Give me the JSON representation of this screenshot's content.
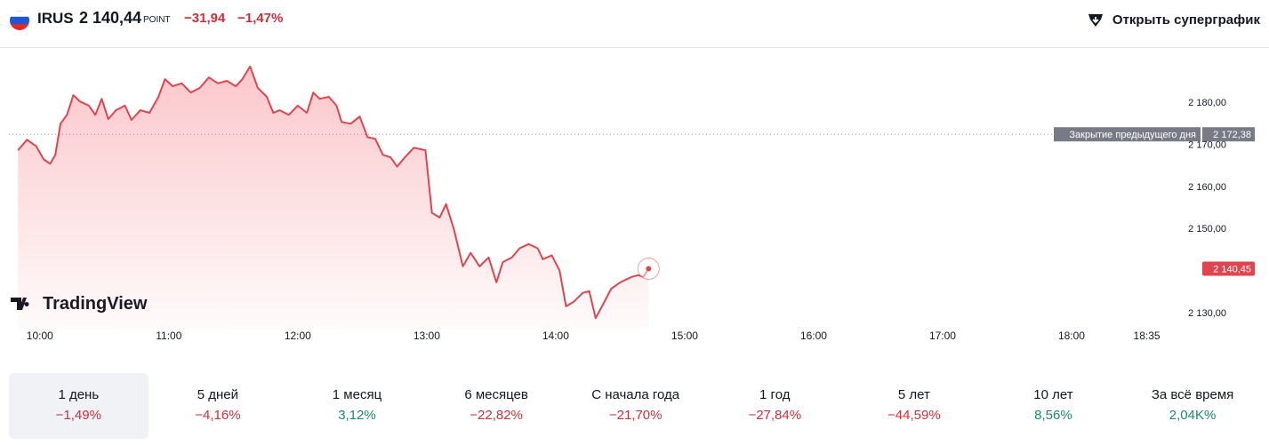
{
  "header": {
    "ticker": "IRUS",
    "price": {
      "value": 2140.44,
      "label": "2 140,44"
    },
    "unit": "POINT",
    "change": {
      "value": -31.94,
      "label": "−31,94"
    },
    "change_percent": {
      "value": -1.47,
      "label": "−1,47%"
    },
    "button": "Открыть суперграфик"
  },
  "chart_data": {
    "type": "area",
    "watermark": "TradingView",
    "color": "#e0454f",
    "x": [
      9.83,
      9.9,
      9.97,
      10.03,
      10.08,
      10.12,
      10.16,
      10.21,
      10.26,
      10.31,
      10.38,
      10.43,
      10.48,
      10.53,
      10.59,
      10.66,
      10.71,
      10.78,
      10.85,
      10.92,
      10.97,
      11.03,
      11.1,
      11.17,
      11.24,
      11.31,
      11.38,
      11.45,
      11.52,
      11.57,
      11.63,
      11.69,
      11.76,
      11.81,
      11.86,
      11.93,
      12.0,
      12.07,
      12.12,
      12.17,
      12.24,
      12.3,
      12.34,
      12.41,
      12.48,
      12.54,
      12.6,
      12.66,
      12.72,
      12.77,
      12.83,
      12.9,
      12.99,
      13.04,
      13.1,
      13.15,
      13.21,
      13.28,
      13.34,
      13.41,
      13.48,
      13.54,
      13.59,
      13.66,
      13.72,
      13.79,
      13.86,
      13.9,
      13.97,
      14.03,
      14.08,
      14.14,
      14.21,
      14.26,
      14.31,
      14.37,
      14.43,
      14.5,
      14.59,
      14.64,
      14.68,
      14.72
    ],
    "values": [
      2168.6,
      2171.1,
      2169.6,
      2166.4,
      2165.4,
      2167.5,
      2174.9,
      2177.0,
      2181.7,
      2180.2,
      2179.2,
      2177.0,
      2180.8,
      2176.0,
      2178.1,
      2179.2,
      2175.8,
      2178.1,
      2177.5,
      2181.3,
      2185.5,
      2183.8,
      2184.5,
      2182.3,
      2183.4,
      2185.9,
      2184.5,
      2185.1,
      2183.8,
      2185.5,
      2188.5,
      2183.4,
      2181.3,
      2177.5,
      2178.1,
      2177.0,
      2179.2,
      2177.5,
      2182.3,
      2180.8,
      2181.3,
      2179.2,
      2175.3,
      2174.9,
      2176.6,
      2171.7,
      2171.3,
      2167.5,
      2166.9,
      2164.7,
      2166.9,
      2169.2,
      2168.6,
      2153.7,
      2152.6,
      2155.8,
      2149.9,
      2141.0,
      2144.2,
      2141.0,
      2143.1,
      2137.2,
      2142.0,
      2143.1,
      2145.3,
      2146.3,
      2145.3,
      2142.7,
      2143.6,
      2140.0,
      2131.5,
      2132.6,
      2134.7,
      2135.1,
      2128.7,
      2132.1,
      2135.7,
      2137.2,
      2138.5,
      2138.9,
      2138.5,
      2140.45
    ],
    "value_labels": [
      null,
      null,
      null,
      null,
      null,
      null,
      null,
      null,
      null,
      null,
      null,
      null,
      null,
      null,
      null,
      null,
      null,
      null,
      null,
      null,
      null,
      null,
      null,
      null,
      null,
      null,
      null,
      null,
      null,
      null,
      null,
      null,
      null,
      null,
      null,
      null,
      null,
      null,
      null,
      null,
      null,
      null,
      null,
      null,
      null,
      null,
      null,
      null,
      null,
      null,
      null,
      null,
      null,
      null,
      null,
      null,
      null,
      null,
      null,
      null,
      null,
      null,
      null,
      null,
      null,
      null,
      null,
      null,
      null,
      null,
      null,
      null,
      null,
      null,
      null,
      null,
      null,
      null,
      null,
      null,
      null,
      "2 140,45"
    ],
    "xlim": [
      9.76,
      19.0
    ],
    "xticks": [
      {
        "value": 10,
        "label": "10:00"
      },
      {
        "value": 11,
        "label": "11:00"
      },
      {
        "value": 12,
        "label": "12:00"
      },
      {
        "value": 13,
        "label": "13:00"
      },
      {
        "value": 14,
        "label": "14:00"
      },
      {
        "value": 15,
        "label": "15:00"
      },
      {
        "value": 16,
        "label": "16:00"
      },
      {
        "value": 17,
        "label": "17:00"
      },
      {
        "value": 18,
        "label": "18:00"
      },
      {
        "value": 18.5833,
        "label": "18:35"
      }
    ],
    "ylim": [
      2126.2,
      2192.9
    ],
    "yticks": [
      {
        "value": 2130,
        "label": "2 130,00"
      },
      {
        "value": 2150,
        "label": "2 150,00"
      },
      {
        "value": 2160,
        "label": "2 160,00"
      },
      {
        "value": 2170,
        "label": "2 170,00"
      },
      {
        "value": 2180,
        "label": "2 180,00"
      }
    ],
    "previous_close": {
      "text": "Закрытие предыдущего дня",
      "value": 2172.38,
      "label": "2 172,38"
    }
  },
  "periods": {
    "selected": 0,
    "items": [
      {
        "label": "1 день",
        "change": -1.49,
        "change_label": "−1,49%"
      },
      {
        "label": "5 дней",
        "change": -4.16,
        "change_label": "−4,16%"
      },
      {
        "label": "1 месяц",
        "change": 3.12,
        "change_label": "3,12%"
      },
      {
        "label": "6 месяцев",
        "change": -22.82,
        "change_label": "−22,82%"
      },
      {
        "label": "С начала года",
        "change": -21.7,
        "change_label": "−21,70%"
      },
      {
        "label": "1 год",
        "change": -27.84,
        "change_label": "−27,84%"
      },
      {
        "label": "5 лет",
        "change": -44.59,
        "change_label": "−44,59%"
      },
      {
        "label": "10 лет",
        "change": 8.56,
        "change_label": "8,56%"
      },
      {
        "label": "За всё время",
        "change": 2040,
        "change_label": "2,04K%"
      }
    ]
  }
}
